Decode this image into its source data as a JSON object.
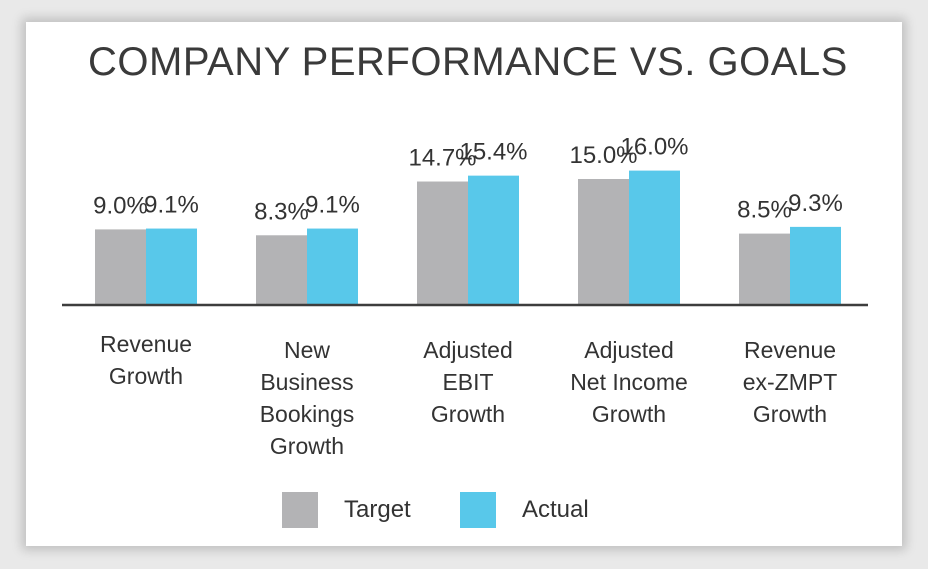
{
  "chart_data": {
    "type": "bar",
    "title": "COMPANY PERFORMANCE VS. GOALS",
    "categories": [
      "Revenue\nGrowth",
      "New\nBusiness\nBookings\nGrowth",
      "Adjusted\nEBIT\nGrowth",
      "Adjusted\nNet Income\nGrowth",
      "Revenue\nex-ZMPT\nGrowth"
    ],
    "series": [
      {
        "name": "Target",
        "values": [
          9.0,
          8.3,
          14.7,
          15.0,
          8.5
        ],
        "labels": [
          "9.0%",
          "8.3%",
          "14.7%",
          "15.0%",
          "8.5%"
        ],
        "color": "#b3b3b5"
      },
      {
        "name": "Actual",
        "values": [
          9.1,
          9.1,
          15.4,
          16.0,
          9.3
        ],
        "labels": [
          "9.1%",
          "9.1%",
          "15.4%",
          "16.0%",
          "9.3%"
        ],
        "color": "#58c8ea"
      }
    ],
    "xlabel": "",
    "ylabel": "",
    "ylim": [
      0,
      20
    ],
    "grid": false,
    "legend": "bottom-center"
  }
}
